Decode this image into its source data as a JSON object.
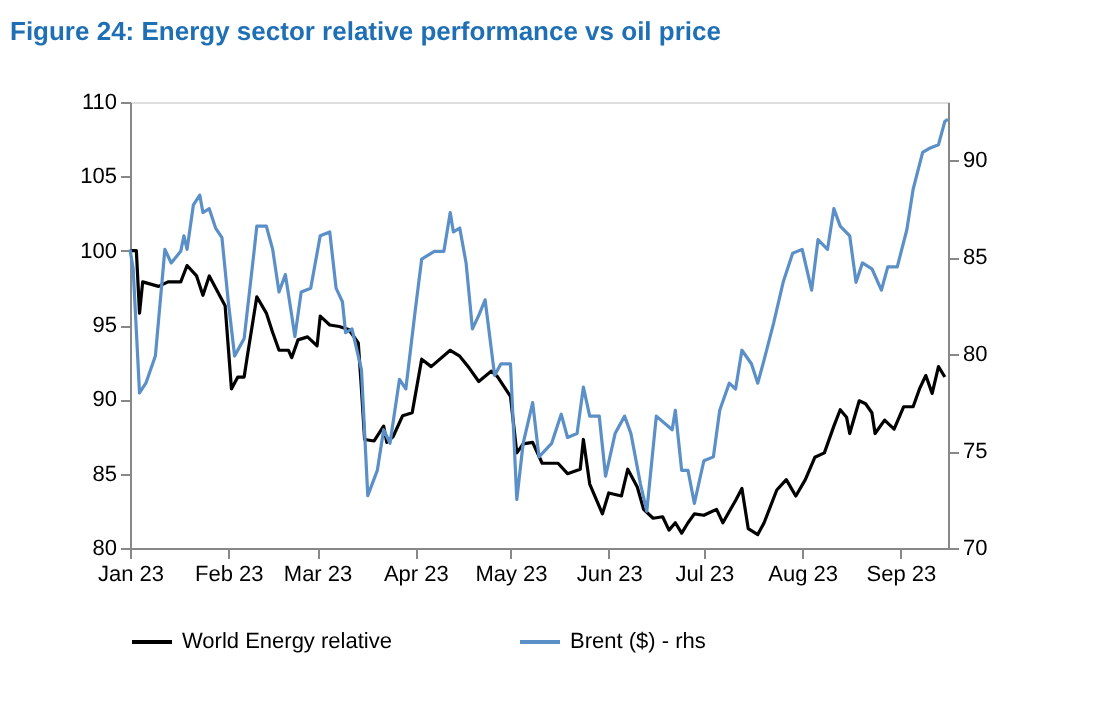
{
  "chart_data": {
    "type": "line",
    "title": "Figure 24: Energy sector relative performance vs oil price",
    "xlim": [
      "2023-01-01",
      "2023-09-16"
    ],
    "xticks": [
      {
        "value": "2023-01-01",
        "label": "Jan 23"
      },
      {
        "value": "2023-02-01",
        "label": "Feb 23"
      },
      {
        "value": "2023-03-01",
        "label": "Mar 23"
      },
      {
        "value": "2023-04-01",
        "label": "Apr 23"
      },
      {
        "value": "2023-05-01",
        "label": "May 23"
      },
      {
        "value": "2023-06-01",
        "label": "Jun 23"
      },
      {
        "value": "2023-07-01",
        "label": "Jul 23"
      },
      {
        "value": "2023-08-01",
        "label": "Aug 23"
      },
      {
        "value": "2023-09-01",
        "label": "Sep 23"
      }
    ],
    "ylim": [
      80,
      110
    ],
    "yticks": [
      80,
      85,
      90,
      95,
      100,
      105,
      110
    ],
    "y2lim": [
      70,
      93
    ],
    "y2ticks": [
      70,
      75,
      80,
      85,
      90
    ],
    "grid": false,
    "legend": "bottom",
    "marker": "none",
    "line_style": "solid",
    "series": [
      {
        "name": "World Energy relative",
        "color": "#000000",
        "x": [
          "2023-01-01",
          "2023-01-03",
          "2023-01-04",
          "2023-01-05",
          "2023-01-10",
          "2023-01-13",
          "2023-01-17",
          "2023-01-19",
          "2023-01-22",
          "2023-01-24",
          "2023-01-26",
          "2023-01-31",
          "2023-02-02",
          "2023-02-04",
          "2023-02-06",
          "2023-02-07",
          "2023-02-10",
          "2023-02-13",
          "2023-02-15",
          "2023-02-17",
          "2023-02-20",
          "2023-02-21",
          "2023-02-23",
          "2023-02-26",
          "2023-03-01",
          "2023-03-02",
          "2023-03-05",
          "2023-03-08",
          "2023-03-11",
          "2023-03-14",
          "2023-03-15",
          "2023-03-16",
          "2023-03-19",
          "2023-03-22",
          "2023-03-23",
          "2023-03-25",
          "2023-03-28",
          "2023-03-31",
          "2023-04-01",
          "2023-04-03",
          "2023-04-06",
          "2023-04-12",
          "2023-04-15",
          "2023-04-18",
          "2023-04-21",
          "2023-04-25",
          "2023-04-27",
          "2023-05-01",
          "2023-05-03",
          "2023-05-05",
          "2023-05-08",
          "2023-05-11",
          "2023-05-16",
          "2023-05-19",
          "2023-05-23",
          "2023-05-24",
          "2023-05-26",
          "2023-05-30",
          "2023-06-01",
          "2023-06-05",
          "2023-06-07",
          "2023-06-10",
          "2023-06-12",
          "2023-06-15",
          "2023-06-18",
          "2023-06-20",
          "2023-06-22",
          "2023-06-24",
          "2023-06-26",
          "2023-06-28",
          "2023-07-01",
          "2023-07-05",
          "2023-07-07",
          "2023-07-11",
          "2023-07-13",
          "2023-07-15",
          "2023-07-18",
          "2023-07-20",
          "2023-07-24",
          "2023-07-27",
          "2023-07-30",
          "2023-08-02",
          "2023-08-05",
          "2023-08-08",
          "2023-08-11",
          "2023-08-13",
          "2023-08-15",
          "2023-08-16",
          "2023-08-19",
          "2023-08-21",
          "2023-08-23",
          "2023-08-24",
          "2023-08-27",
          "2023-08-30",
          "2023-09-02",
          "2023-09-05",
          "2023-09-07",
          "2023-09-09",
          "2023-09-11",
          "2023-09-13",
          "2023-09-15"
        ],
        "values": [
          100,
          100,
          95.8,
          97.9,
          97.6,
          97.9,
          97.9,
          99,
          98.3,
          97,
          98.3,
          96.3,
          90.7,
          91.5,
          91.5,
          92.9,
          96.9,
          95.8,
          94.5,
          93.3,
          93.3,
          92.8,
          94,
          94.2,
          93.6,
          95.6,
          95,
          94.9,
          94.7,
          93.8,
          90.7,
          87.3,
          87.2,
          88.2,
          87.1,
          87.5,
          88.9,
          89.1,
          90.3,
          92.7,
          92.2,
          93.3,
          92.9,
          92.1,
          91.2,
          91.9,
          91.5,
          90.2,
          86.4,
          87,
          87.1,
          85.7,
          85.7,
          85,
          85.3,
          87.3,
          84.3,
          82.3,
          83.7,
          83.5,
          85.3,
          84.1,
          82.6,
          82,
          82.1,
          81.2,
          81.7,
          81,
          81.7,
          82.3,
          82.2,
          82.6,
          81.7,
          83.2,
          84,
          81.3,
          80.9,
          81.7,
          83.9,
          84.6,
          83.5,
          84.6,
          86.1,
          86.4,
          88.2,
          89.3,
          88.8,
          87.7,
          89.9,
          89.7,
          89.1,
          87.7,
          88.6,
          88,
          89.5,
          89.5,
          90.7,
          91.6,
          90.4,
          92.2,
          91.5
        ]
      },
      {
        "name": "Brent ($) - rhs",
        "color": "#5b8fc7",
        "axis": "y2",
        "x": [
          "2023-01-01",
          "2023-01-02",
          "2023-01-04",
          "2023-01-06",
          "2023-01-09",
          "2023-01-12",
          "2023-01-14",
          "2023-01-17",
          "2023-01-18",
          "2023-01-19",
          "2023-01-21",
          "2023-01-23",
          "2023-01-24",
          "2023-01-26",
          "2023-01-28",
          "2023-01-30",
          "2023-02-01",
          "2023-02-03",
          "2023-02-06",
          "2023-02-09",
          "2023-02-10",
          "2023-02-13",
          "2023-02-15",
          "2023-02-17",
          "2023-02-19",
          "2023-02-21",
          "2023-02-22",
          "2023-02-24",
          "2023-02-27",
          "2023-03-02",
          "2023-03-05",
          "2023-03-07",
          "2023-03-09",
          "2023-03-10",
          "2023-03-12",
          "2023-03-15",
          "2023-03-17",
          "2023-03-20",
          "2023-03-22",
          "2023-03-24",
          "2023-03-27",
          "2023-03-29",
          "2023-04-01",
          "2023-04-03",
          "2023-04-07",
          "2023-04-10",
          "2023-04-12",
          "2023-04-13",
          "2023-04-15",
          "2023-04-17",
          "2023-04-19",
          "2023-04-21",
          "2023-04-23",
          "2023-04-26",
          "2023-04-28",
          "2023-05-01",
          "2023-05-03",
          "2023-05-05",
          "2023-05-08",
          "2023-05-10",
          "2023-05-14",
          "2023-05-17",
          "2023-05-19",
          "2023-05-22",
          "2023-05-24",
          "2023-05-26",
          "2023-05-29",
          "2023-05-31",
          "2023-06-03",
          "2023-06-06",
          "2023-06-08",
          "2023-06-11",
          "2023-06-13",
          "2023-06-16",
          "2023-06-21",
          "2023-06-22",
          "2023-06-24",
          "2023-06-26",
          "2023-06-28",
          "2023-07-01",
          "2023-07-04",
          "2023-07-06",
          "2023-07-09",
          "2023-07-11",
          "2023-07-13",
          "2023-07-16",
          "2023-07-18",
          "2023-07-20",
          "2023-07-23",
          "2023-07-26",
          "2023-07-29",
          "2023-08-01",
          "2023-08-04",
          "2023-08-06",
          "2023-08-09",
          "2023-08-11",
          "2023-08-13",
          "2023-08-16",
          "2023-08-18",
          "2023-08-20",
          "2023-08-23",
          "2023-08-26",
          "2023-08-28",
          "2023-08-31",
          "2023-09-03",
          "2023-09-05",
          "2023-09-08",
          "2023-09-10",
          "2023-09-13",
          "2023-09-15",
          "2023-09-16"
        ],
        "values": [
          85.4,
          84.4,
          78,
          78.5,
          79.9,
          85.4,
          84.7,
          85.3,
          86.1,
          85.4,
          87.7,
          88.2,
          87.3,
          87.5,
          86.5,
          86,
          82.7,
          79.9,
          80.8,
          85.1,
          86.6,
          86.6,
          85.4,
          83.2,
          84.1,
          82,
          80.9,
          83.2,
          83.4,
          86.1,
          86.3,
          83.4,
          82.7,
          81.1,
          81.3,
          79.2,
          72.7,
          74,
          76.1,
          75.4,
          78.7,
          78.2,
          82.3,
          84.9,
          85.3,
          85.3,
          87.3,
          86.3,
          86.5,
          84.7,
          81.3,
          82,
          82.8,
          78.9,
          79.5,
          79.5,
          72.5,
          75.4,
          77.5,
          74.7,
          75.4,
          76.9,
          75.7,
          75.9,
          78.3,
          76.8,
          76.8,
          73.7,
          75.9,
          76.8,
          75.9,
          73.3,
          71.9,
          76.8,
          76.1,
          77.1,
          74,
          74,
          72.3,
          74.5,
          74.7,
          77.1,
          78.5,
          78.2,
          80.2,
          79.5,
          78.5,
          79.7,
          81.6,
          83.7,
          85.2,
          85.4,
          83.3,
          85.9,
          85.4,
          87.5,
          86.6,
          86.1,
          83.7,
          84.7,
          84.4,
          83.3,
          84.5,
          84.5,
          86.4,
          88.5,
          90.4,
          90.6,
          90.8,
          92,
          92.1
        ]
      }
    ]
  }
}
